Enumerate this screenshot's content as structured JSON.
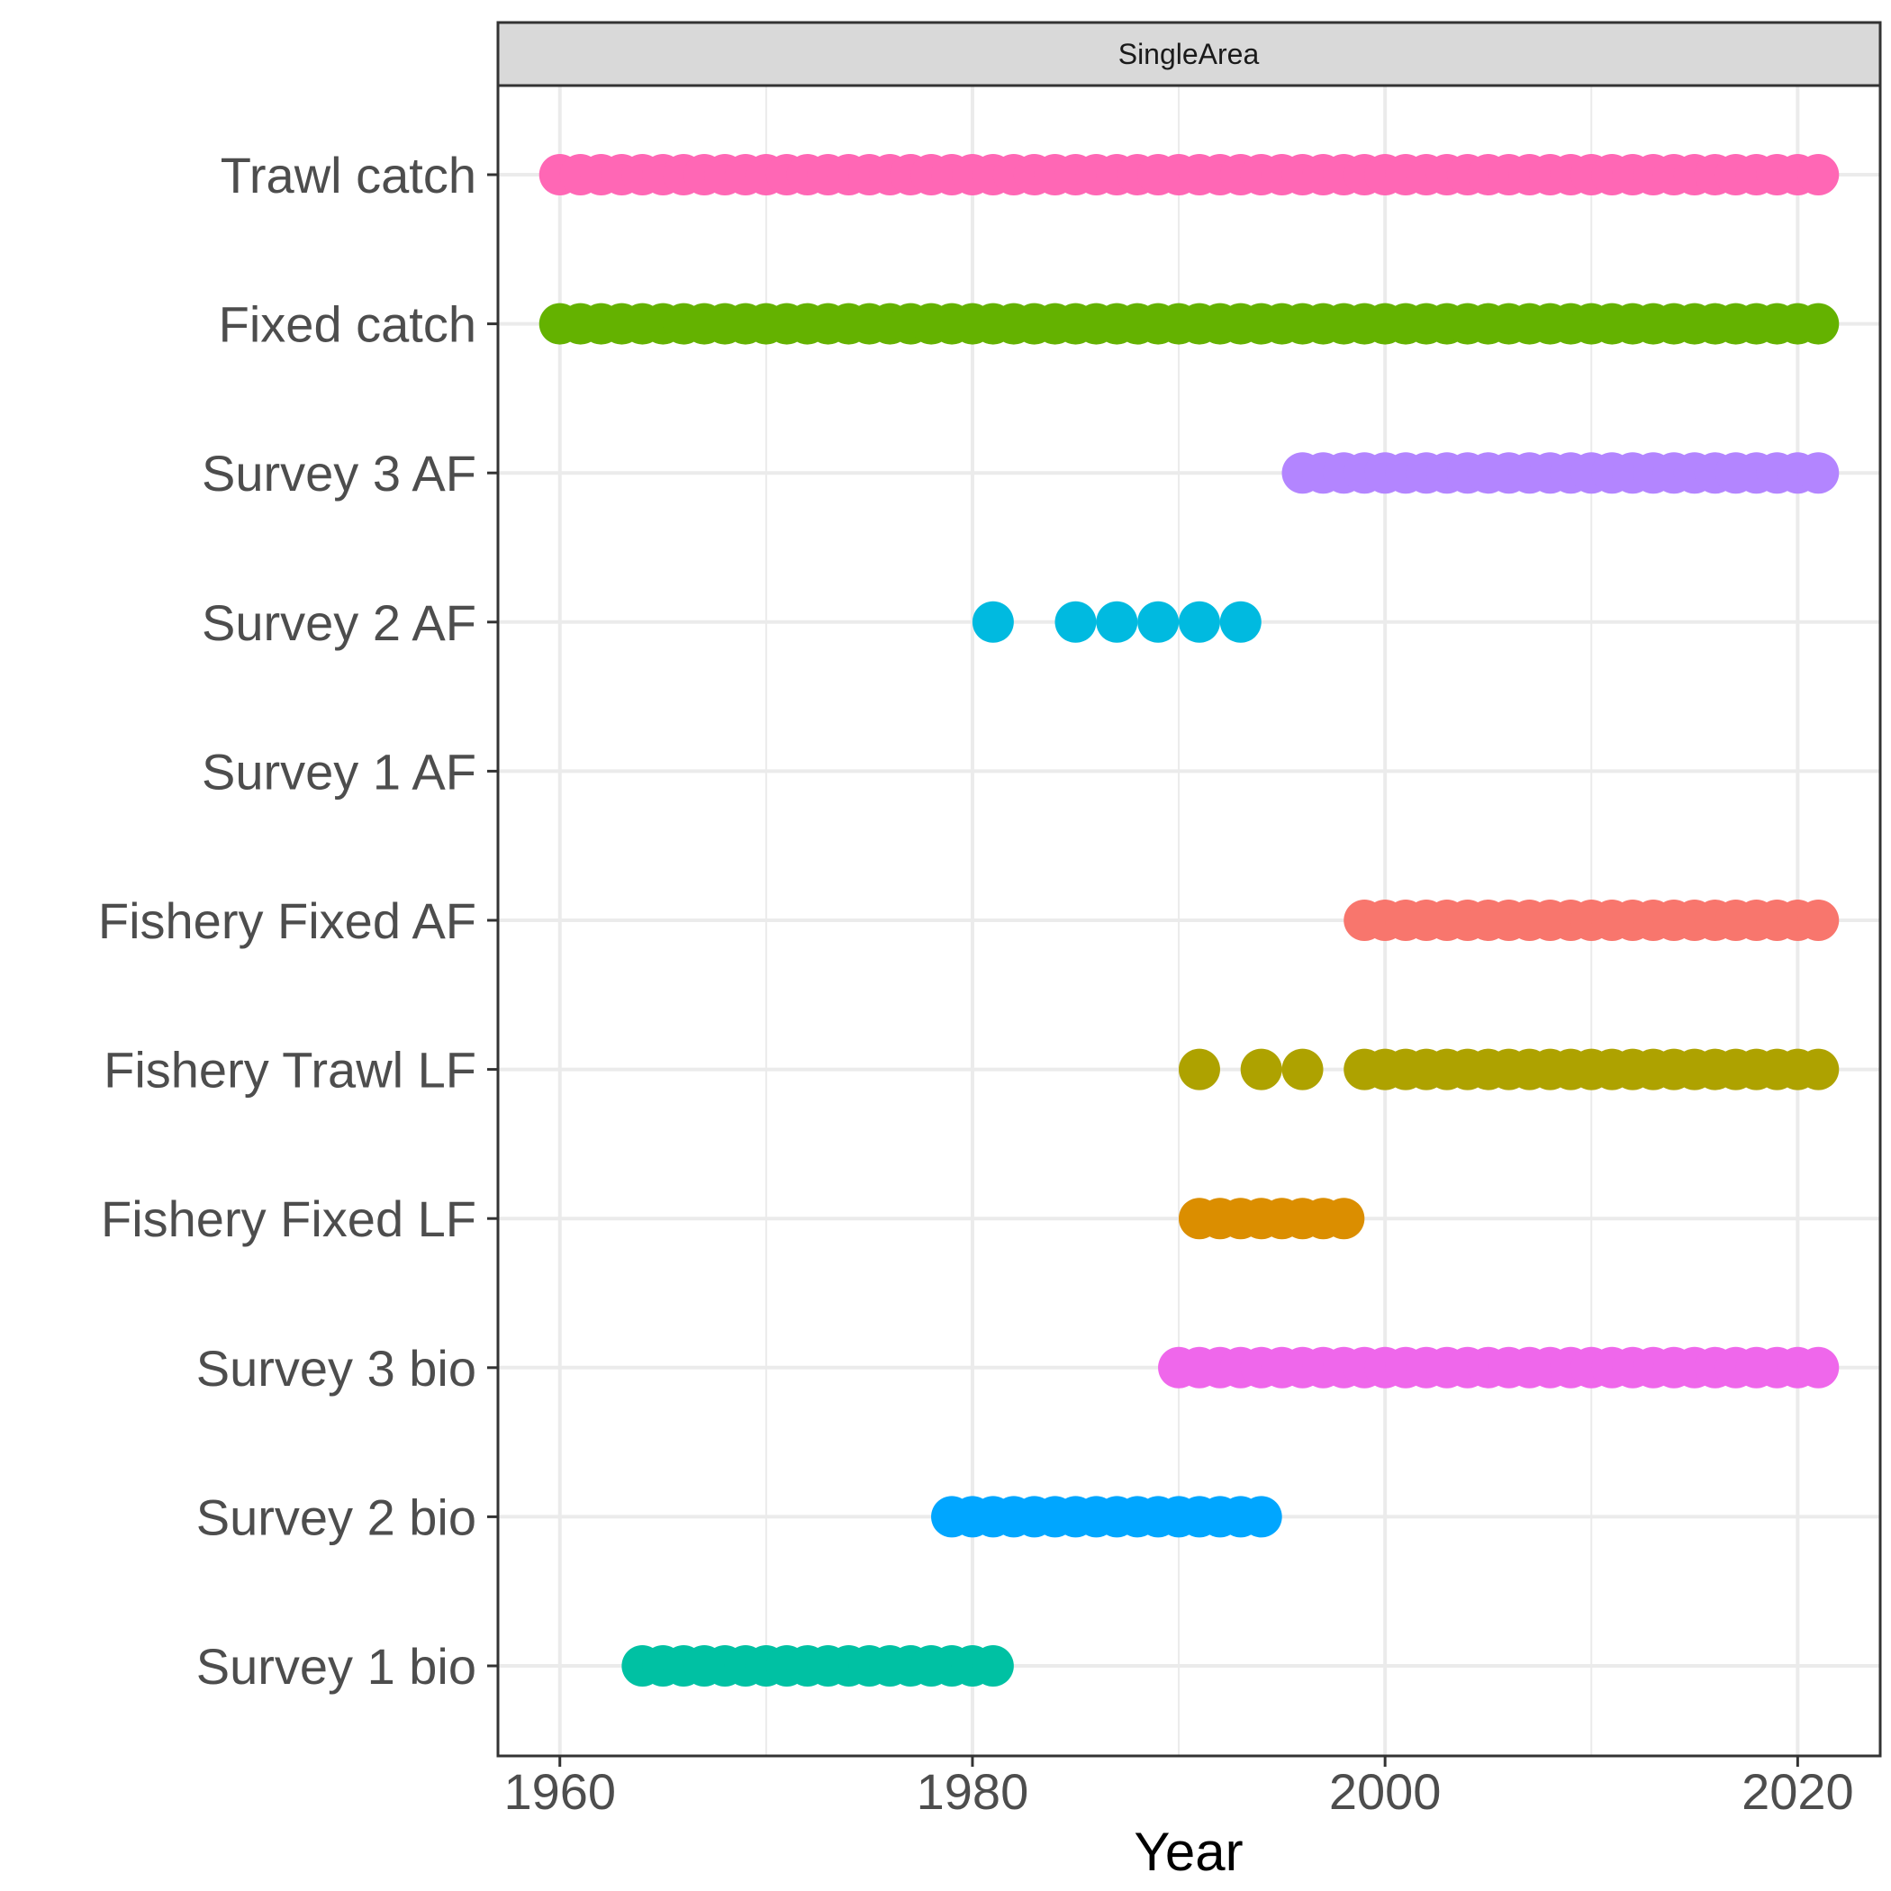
{
  "chart_data": {
    "type": "scatter",
    "facet": "SingleArea",
    "xlabel": "Year",
    "ylabel": "",
    "xlim": [
      1957,
      2024
    ],
    "xticks": [
      1960,
      1980,
      2000,
      2020
    ],
    "grid": true,
    "legend": "none",
    "categories": [
      "Survey 1 bio",
      "Survey 2 bio",
      "Survey 3 bio",
      "Fishery Fixed LF",
      "Fishery Trawl LF",
      "Fishery Fixed AF",
      "Survey 1 AF",
      "Survey 2 AF",
      "Survey 3 AF",
      "Fixed catch",
      "Trawl catch"
    ],
    "series": [
      {
        "name": "Trawl catch",
        "color": "#FF67B5",
        "years": [
          1960,
          1961,
          1962,
          1963,
          1964,
          1965,
          1966,
          1967,
          1968,
          1969,
          1970,
          1971,
          1972,
          1973,
          1974,
          1975,
          1976,
          1977,
          1978,
          1979,
          1980,
          1981,
          1982,
          1983,
          1984,
          1985,
          1986,
          1987,
          1988,
          1989,
          1990,
          1991,
          1992,
          1993,
          1994,
          1995,
          1996,
          1997,
          1998,
          1999,
          2000,
          2001,
          2002,
          2003,
          2004,
          2005,
          2006,
          2007,
          2008,
          2009,
          2010,
          2011,
          2012,
          2013,
          2014,
          2015,
          2016,
          2017,
          2018,
          2019,
          2020,
          2021
        ]
      },
      {
        "name": "Fixed catch",
        "color": "#64B200",
        "years": [
          1960,
          1961,
          1962,
          1963,
          1964,
          1965,
          1966,
          1967,
          1968,
          1969,
          1970,
          1971,
          1972,
          1973,
          1974,
          1975,
          1976,
          1977,
          1978,
          1979,
          1980,
          1981,
          1982,
          1983,
          1984,
          1985,
          1986,
          1987,
          1988,
          1989,
          1990,
          1991,
          1992,
          1993,
          1994,
          1995,
          1996,
          1997,
          1998,
          1999,
          2000,
          2001,
          2002,
          2003,
          2004,
          2005,
          2006,
          2007,
          2008,
          2009,
          2010,
          2011,
          2012,
          2013,
          2014,
          2015,
          2016,
          2017,
          2018,
          2019,
          2020,
          2021
        ]
      },
      {
        "name": "Survey 3 AF",
        "color": "#B385FF",
        "years": [
          1996,
          1997,
          1998,
          1999,
          2000,
          2001,
          2002,
          2003,
          2004,
          2005,
          2006,
          2007,
          2008,
          2009,
          2010,
          2011,
          2012,
          2013,
          2014,
          2015,
          2016,
          2017,
          2018,
          2019,
          2020,
          2021
        ]
      },
      {
        "name": "Survey 2 AF",
        "color": "#00BAE0",
        "years": [
          1981,
          1985,
          1987,
          1989,
          1991,
          1993
        ]
      },
      {
        "name": "Survey 1 AF",
        "color": "#00B8E7",
        "years": []
      },
      {
        "name": "Fishery Fixed AF",
        "color": "#F8766D",
        "years": [
          1999,
          2000,
          2001,
          2002,
          2003,
          2004,
          2005,
          2006,
          2007,
          2008,
          2009,
          2010,
          2011,
          2012,
          2013,
          2014,
          2015,
          2016,
          2017,
          2018,
          2019,
          2020,
          2021
        ]
      },
      {
        "name": "Fishery Trawl LF",
        "color": "#AEA200",
        "years": [
          1991,
          1994,
          1996,
          1999,
          2000,
          2001,
          2002,
          2003,
          2004,
          2005,
          2006,
          2007,
          2008,
          2009,
          2010,
          2011,
          2012,
          2013,
          2014,
          2015,
          2016,
          2017,
          2018,
          2019,
          2020,
          2021
        ]
      },
      {
        "name": "Fishery Fixed LF",
        "color": "#DB8E00",
        "years": [
          1991,
          1992,
          1993,
          1994,
          1995,
          1996,
          1997,
          1998
        ]
      },
      {
        "name": "Survey 3 bio",
        "color": "#EF67EB",
        "years": [
          1990,
          1991,
          1992,
          1993,
          1994,
          1995,
          1996,
          1997,
          1998,
          1999,
          2000,
          2001,
          2002,
          2003,
          2004,
          2005,
          2006,
          2007,
          2008,
          2009,
          2010,
          2011,
          2012,
          2013,
          2014,
          2015,
          2016,
          2017,
          2018,
          2019,
          2020,
          2021
        ]
      },
      {
        "name": "Survey 2 bio",
        "color": "#00A6FF",
        "years": [
          1979,
          1980,
          1981,
          1982,
          1983,
          1984,
          1985,
          1986,
          1987,
          1988,
          1989,
          1990,
          1991,
          1992,
          1993,
          1994
        ]
      },
      {
        "name": "Survey 1 bio",
        "color": "#00C1A3",
        "years": [
          1964,
          1965,
          1966,
          1967,
          1968,
          1969,
          1970,
          1971,
          1972,
          1973,
          1974,
          1975,
          1976,
          1977,
          1978,
          1979,
          1980,
          1981
        ]
      }
    ]
  }
}
